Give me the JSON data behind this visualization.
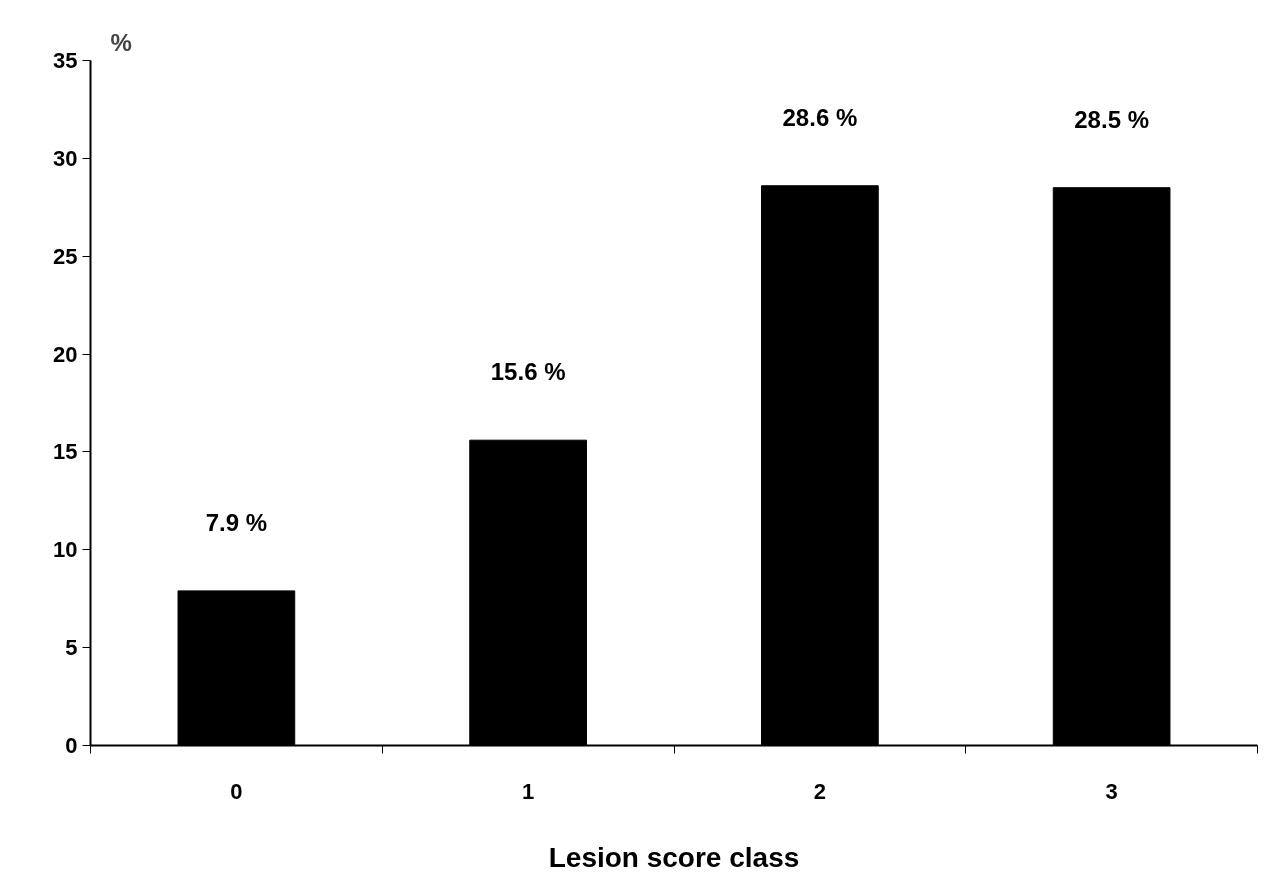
{
  "chart_data": {
    "type": "bar",
    "categories": [
      "0",
      "1",
      "2",
      "3"
    ],
    "values": [
      7.9,
      15.6,
      28.6,
      28.5
    ],
    "value_labels": [
      "7.9 %",
      "15.6 %",
      "28.6 %",
      "28.5 %"
    ],
    "color": "#000000",
    "xlabel": "Lesion score class",
    "ylabel": "%",
    "ylim": [
      0,
      35
    ],
    "yticks": [
      0,
      5,
      10,
      15,
      20,
      25,
      30,
      35
    ],
    "grid": false
  }
}
